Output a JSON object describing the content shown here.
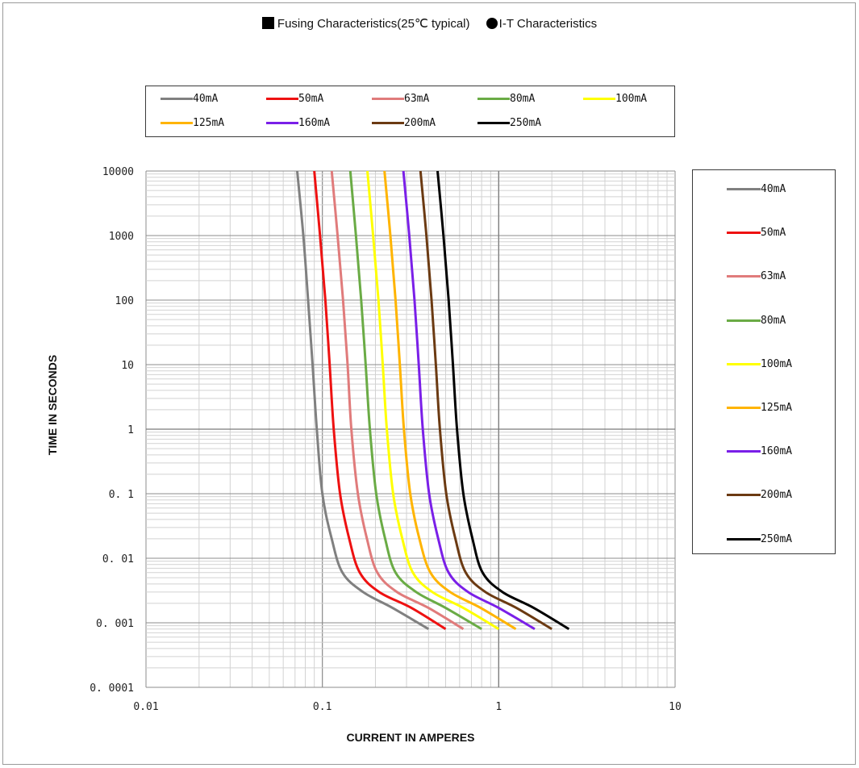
{
  "header": {
    "fusing_label": "Fusing Characteristics(25℃ typical)",
    "it_label": "I-T Characteristics"
  },
  "chart_data": {
    "type": "line",
    "xlabel": "CURRENT  IN  AMPERES",
    "ylabel": "TIME  IN  SECONDS",
    "x_scale": "log",
    "y_scale": "log",
    "xlim": [
      0.01,
      10
    ],
    "ylim": [
      0.0001,
      10000
    ],
    "x_ticks": [
      {
        "value": 0.01,
        "label": "0.01"
      },
      {
        "value": 0.1,
        "label": "0.1"
      },
      {
        "value": 1,
        "label": "1"
      },
      {
        "value": 10,
        "label": "10"
      }
    ],
    "y_ticks": [
      {
        "value": 10000,
        "label": "10000"
      },
      {
        "value": 1000,
        "label": "1000"
      },
      {
        "value": 100,
        "label": "100"
      },
      {
        "value": 10,
        "label": "10"
      },
      {
        "value": 1,
        "label": "1"
      },
      {
        "value": 0.1,
        "label": "0. 1"
      },
      {
        "value": 0.01,
        "label": "0. 01"
      },
      {
        "value": 0.001,
        "label": "0. 001"
      },
      {
        "value": 0.0001,
        "label": "0. 0001"
      }
    ],
    "grid": true,
    "legend_placement": [
      "top",
      "right"
    ],
    "series": [
      {
        "name": "40mA",
        "color": "#808080",
        "points": [
          [
            0.072,
            10000
          ],
          [
            0.078,
            1000
          ],
          [
            0.083,
            100
          ],
          [
            0.088,
            10
          ],
          [
            0.093,
            1
          ],
          [
            0.1,
            0.1
          ],
          [
            0.113,
            0.02
          ],
          [
            0.13,
            0.006
          ],
          [
            0.17,
            0.003
          ],
          [
            0.25,
            0.0017
          ],
          [
            0.4,
            0.0008
          ]
        ]
      },
      {
        "name": "50mA",
        "color": "#ee1111",
        "points": [
          [
            0.09,
            10000
          ],
          [
            0.097,
            1000
          ],
          [
            0.104,
            100
          ],
          [
            0.11,
            10
          ],
          [
            0.116,
            1
          ],
          [
            0.126,
            0.1
          ],
          [
            0.142,
            0.02
          ],
          [
            0.163,
            0.006
          ],
          [
            0.21,
            0.003
          ],
          [
            0.32,
            0.0017
          ],
          [
            0.5,
            0.0008
          ]
        ]
      },
      {
        "name": "63mA",
        "color": "#e07b7b",
        "points": [
          [
            0.113,
            10000
          ],
          [
            0.122,
            1000
          ],
          [
            0.131,
            100
          ],
          [
            0.139,
            10
          ],
          [
            0.146,
            1
          ],
          [
            0.159,
            0.1
          ],
          [
            0.179,
            0.02
          ],
          [
            0.205,
            0.006
          ],
          [
            0.265,
            0.003
          ],
          [
            0.4,
            0.0017
          ],
          [
            0.63,
            0.0008
          ]
        ]
      },
      {
        "name": "80mA",
        "color": "#6aab45",
        "points": [
          [
            0.144,
            10000
          ],
          [
            0.155,
            1000
          ],
          [
            0.166,
            100
          ],
          [
            0.176,
            10
          ],
          [
            0.186,
            1
          ],
          [
            0.202,
            0.1
          ],
          [
            0.227,
            0.02
          ],
          [
            0.26,
            0.006
          ],
          [
            0.34,
            0.003
          ],
          [
            0.5,
            0.0017
          ],
          [
            0.8,
            0.0008
          ]
        ]
      },
      {
        "name": "100mA",
        "color": "#ffff00",
        "points": [
          [
            0.18,
            10000
          ],
          [
            0.194,
            1000
          ],
          [
            0.208,
            100
          ],
          [
            0.22,
            10
          ],
          [
            0.232,
            1
          ],
          [
            0.252,
            0.1
          ],
          [
            0.284,
            0.02
          ],
          [
            0.326,
            0.006
          ],
          [
            0.42,
            0.003
          ],
          [
            0.63,
            0.0017
          ],
          [
            1.0,
            0.0008
          ]
        ]
      },
      {
        "name": "125mA",
        "color": "#ffb400",
        "points": [
          [
            0.225,
            10000
          ],
          [
            0.243,
            1000
          ],
          [
            0.26,
            100
          ],
          [
            0.275,
            10
          ],
          [
            0.29,
            1
          ],
          [
            0.315,
            0.1
          ],
          [
            0.355,
            0.02
          ],
          [
            0.41,
            0.006
          ],
          [
            0.53,
            0.003
          ],
          [
            0.79,
            0.0017
          ],
          [
            1.25,
            0.0008
          ]
        ]
      },
      {
        "name": "160mA",
        "color": "#7a1fe8",
        "points": [
          [
            0.288,
            10000
          ],
          [
            0.311,
            1000
          ],
          [
            0.333,
            100
          ],
          [
            0.352,
            10
          ],
          [
            0.371,
            1
          ],
          [
            0.403,
            0.1
          ],
          [
            0.454,
            0.02
          ],
          [
            0.52,
            0.006
          ],
          [
            0.67,
            0.003
          ],
          [
            1.0,
            0.0017
          ],
          [
            1.6,
            0.0008
          ]
        ]
      },
      {
        "name": "200mA",
        "color": "#6b3a12",
        "points": [
          [
            0.36,
            10000
          ],
          [
            0.389,
            1000
          ],
          [
            0.416,
            100
          ],
          [
            0.44,
            10
          ],
          [
            0.464,
            1
          ],
          [
            0.504,
            0.1
          ],
          [
            0.568,
            0.02
          ],
          [
            0.65,
            0.006
          ],
          [
            0.84,
            0.003
          ],
          [
            1.26,
            0.0017
          ],
          [
            2.0,
            0.0008
          ]
        ]
      },
      {
        "name": "250mA",
        "color": "#000000",
        "points": [
          [
            0.45,
            10000
          ],
          [
            0.486,
            1000
          ],
          [
            0.52,
            100
          ],
          [
            0.55,
            10
          ],
          [
            0.58,
            1
          ],
          [
            0.63,
            0.1
          ],
          [
            0.71,
            0.02
          ],
          [
            0.81,
            0.006
          ],
          [
            1.05,
            0.003
          ],
          [
            1.58,
            0.0017
          ],
          [
            2.5,
            0.0008
          ]
        ]
      }
    ]
  },
  "legend_top": [
    "40mA",
    "50mA",
    "63mA",
    "80mA",
    "100mA",
    "125mA",
    "160mA",
    "200mA",
    "250mA"
  ],
  "legend_right": [
    "40mA",
    "50mA",
    "63mA",
    "80mA",
    "100mA",
    "125mA",
    "160mA",
    "200mA",
    "250mA"
  ]
}
